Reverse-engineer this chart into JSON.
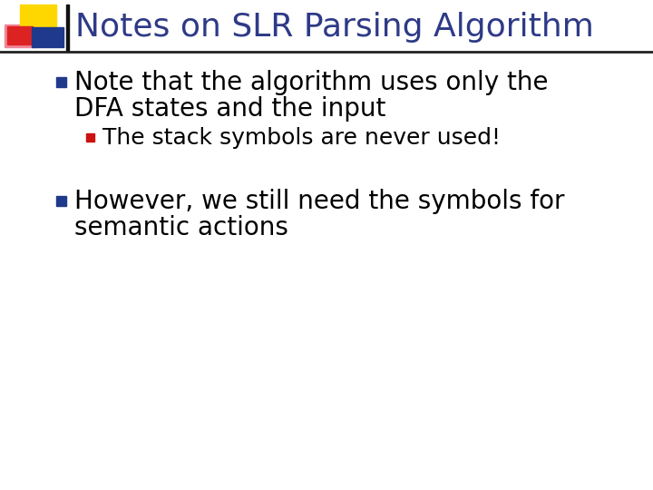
{
  "title": "Notes on SLR Parsing Algorithm",
  "title_color": "#2E3A87",
  "title_fontsize": 26,
  "background_color": "#FFFFFF",
  "bullet1_line1": "Note that the algorithm uses only the",
  "bullet1_line2": "DFA states and the input",
  "bullet2_text": "The stack symbols are never used!",
  "bullet3_line1": "However, we still need the symbols for",
  "bullet3_line2": "semantic actions",
  "body_color": "#000000",
  "body_fontsize": 20,
  "sub_fontsize": 18,
  "bullet_color_blue": "#1F3A8A",
  "bullet_color_red": "#CC1111",
  "header_line_color": "#222222",
  "logo_yellow": "#FFD700",
  "logo_red": "#DD2222",
  "logo_blue": "#1F3A8A",
  "logo_blur_pink": "#EE8899"
}
